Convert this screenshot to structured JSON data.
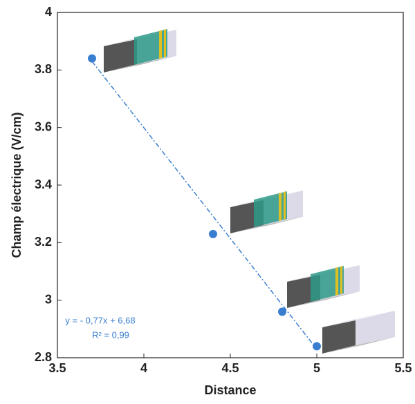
{
  "chart_data": {
    "type": "scatter",
    "xlabel": "Distance",
    "ylabel": "Champ électrique (V/cm)",
    "x": [
      3.7,
      4.4,
      4.8,
      5.0
    ],
    "values": [
      3.84,
      3.23,
      2.96,
      2.84
    ],
    "color": "#3a7fcf",
    "fit": {
      "x": [
        3.7,
        5.0
      ],
      "values": [
        3.83,
        2.83
      ],
      "color": "#3a7fcf"
    },
    "annotations": [
      "y = - 0,77x + 6,68",
      "R² = 0,99"
    ],
    "xlim": [
      3.5,
      5.5
    ],
    "xticks": [
      3.5,
      4,
      4.5,
      5,
      5.5
    ],
    "ylim": [
      2.8,
      4
    ],
    "yticks": [
      2.8,
      3,
      3.2,
      3.4,
      3.6,
      3.8,
      4
    ]
  }
}
